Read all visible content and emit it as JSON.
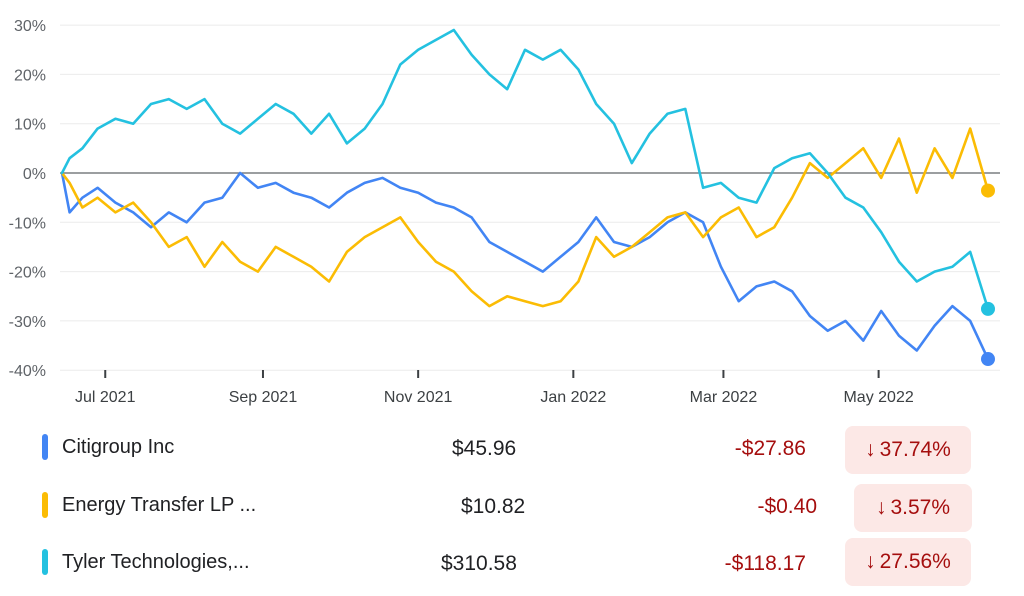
{
  "chart_data": {
    "type": "line",
    "yticks": [
      "30%",
      "20%",
      "10%",
      "0%",
      "-10%",
      "-20%",
      "-30%",
      "-40%"
    ],
    "ylim": [
      -40,
      30
    ],
    "xlim": [
      "2021-06-14",
      "2022-06-13"
    ],
    "xticks": [
      {
        "label": "Jul 2021",
        "date": "2021-07-01"
      },
      {
        "label": "Sep 2021",
        "date": "2021-09-01"
      },
      {
        "label": "Nov 2021",
        "date": "2021-11-01"
      },
      {
        "label": "Jan 2022",
        "date": "2022-01-01"
      },
      {
        "label": "Mar 2022",
        "date": "2022-03-01"
      },
      {
        "label": "May 2022",
        "date": "2022-05-01"
      }
    ],
    "series": [
      {
        "name": "Citigroup Inc",
        "color": "#4285f4",
        "points": [
          [
            "2021-06-14",
            0
          ],
          [
            "2021-06-17",
            -8
          ],
          [
            "2021-06-22",
            -5
          ],
          [
            "2021-06-28",
            -3
          ],
          [
            "2021-07-05",
            -6
          ],
          [
            "2021-07-12",
            -8
          ],
          [
            "2021-07-19",
            -11
          ],
          [
            "2021-07-26",
            -8
          ],
          [
            "2021-08-02",
            -10
          ],
          [
            "2021-08-09",
            -6
          ],
          [
            "2021-08-16",
            -5
          ],
          [
            "2021-08-23",
            0
          ],
          [
            "2021-08-30",
            -3
          ],
          [
            "2021-09-06",
            -2
          ],
          [
            "2021-09-13",
            -4
          ],
          [
            "2021-09-20",
            -5
          ],
          [
            "2021-09-27",
            -7
          ],
          [
            "2021-10-04",
            -4
          ],
          [
            "2021-10-11",
            -2
          ],
          [
            "2021-10-18",
            -1
          ],
          [
            "2021-10-25",
            -3
          ],
          [
            "2021-11-01",
            -4
          ],
          [
            "2021-11-08",
            -6
          ],
          [
            "2021-11-15",
            -7
          ],
          [
            "2021-11-22",
            -9
          ],
          [
            "2021-11-29",
            -14
          ],
          [
            "2021-12-06",
            -16
          ],
          [
            "2021-12-13",
            -18
          ],
          [
            "2021-12-20",
            -20
          ],
          [
            "2021-12-27",
            -17
          ],
          [
            "2022-01-03",
            -14
          ],
          [
            "2022-01-10",
            -9
          ],
          [
            "2022-01-17",
            -14
          ],
          [
            "2022-01-24",
            -15
          ],
          [
            "2022-01-31",
            -13
          ],
          [
            "2022-02-07",
            -10
          ],
          [
            "2022-02-14",
            -8
          ],
          [
            "2022-02-21",
            -10
          ],
          [
            "2022-02-28",
            -19
          ],
          [
            "2022-03-07",
            -26
          ],
          [
            "2022-03-14",
            -23
          ],
          [
            "2022-03-21",
            -22
          ],
          [
            "2022-03-28",
            -24
          ],
          [
            "2022-04-04",
            -29
          ],
          [
            "2022-04-11",
            -32
          ],
          [
            "2022-04-18",
            -30
          ],
          [
            "2022-04-25",
            -34
          ],
          [
            "2022-05-02",
            -28
          ],
          [
            "2022-05-09",
            -33
          ],
          [
            "2022-05-16",
            -36
          ],
          [
            "2022-05-23",
            -31
          ],
          [
            "2022-05-30",
            -27
          ],
          [
            "2022-06-06",
            -30
          ],
          [
            "2022-06-13",
            -37.74
          ]
        ]
      },
      {
        "name": "Energy Transfer LP ...",
        "color": "#fbbc04",
        "points": [
          [
            "2021-06-14",
            0
          ],
          [
            "2021-06-17",
            -2
          ],
          [
            "2021-06-22",
            -7
          ],
          [
            "2021-06-28",
            -5
          ],
          [
            "2021-07-05",
            -8
          ],
          [
            "2021-07-12",
            -6
          ],
          [
            "2021-07-19",
            -10
          ],
          [
            "2021-07-26",
            -15
          ],
          [
            "2021-08-02",
            -13
          ],
          [
            "2021-08-09",
            -19
          ],
          [
            "2021-08-16",
            -14
          ],
          [
            "2021-08-23",
            -18
          ],
          [
            "2021-08-30",
            -20
          ],
          [
            "2021-09-06",
            -15
          ],
          [
            "2021-09-13",
            -17
          ],
          [
            "2021-09-20",
            -19
          ],
          [
            "2021-09-27",
            -22
          ],
          [
            "2021-10-04",
            -16
          ],
          [
            "2021-10-11",
            -13
          ],
          [
            "2021-10-18",
            -11
          ],
          [
            "2021-10-25",
            -9
          ],
          [
            "2021-11-01",
            -14
          ],
          [
            "2021-11-08",
            -18
          ],
          [
            "2021-11-15",
            -20
          ],
          [
            "2021-11-22",
            -24
          ],
          [
            "2021-11-29",
            -27
          ],
          [
            "2021-12-06",
            -25
          ],
          [
            "2021-12-13",
            -26
          ],
          [
            "2021-12-20",
            -27
          ],
          [
            "2021-12-27",
            -26
          ],
          [
            "2022-01-03",
            -22
          ],
          [
            "2022-01-10",
            -13
          ],
          [
            "2022-01-17",
            -17
          ],
          [
            "2022-01-24",
            -15
          ],
          [
            "2022-01-31",
            -12
          ],
          [
            "2022-02-07",
            -9
          ],
          [
            "2022-02-14",
            -8
          ],
          [
            "2022-02-21",
            -13
          ],
          [
            "2022-02-28",
            -9
          ],
          [
            "2022-03-07",
            -7
          ],
          [
            "2022-03-14",
            -13
          ],
          [
            "2022-03-21",
            -11
          ],
          [
            "2022-03-28",
            -5
          ],
          [
            "2022-04-04",
            2
          ],
          [
            "2022-04-11",
            -1
          ],
          [
            "2022-04-18",
            2
          ],
          [
            "2022-04-25",
            5
          ],
          [
            "2022-05-02",
            -1
          ],
          [
            "2022-05-09",
            7
          ],
          [
            "2022-05-16",
            -4
          ],
          [
            "2022-05-23",
            5
          ],
          [
            "2022-05-30",
            -1
          ],
          [
            "2022-06-06",
            9
          ],
          [
            "2022-06-13",
            -3.57
          ]
        ]
      },
      {
        "name": "Tyler Technologies,...",
        "color": "#24c1e0",
        "points": [
          [
            "2021-06-14",
            0
          ],
          [
            "2021-06-17",
            3
          ],
          [
            "2021-06-22",
            5
          ],
          [
            "2021-06-28",
            9
          ],
          [
            "2021-07-05",
            11
          ],
          [
            "2021-07-12",
            10
          ],
          [
            "2021-07-19",
            14
          ],
          [
            "2021-07-26",
            15
          ],
          [
            "2021-08-02",
            13
          ],
          [
            "2021-08-09",
            15
          ],
          [
            "2021-08-16",
            10
          ],
          [
            "2021-08-23",
            8
          ],
          [
            "2021-08-30",
            11
          ],
          [
            "2021-09-06",
            14
          ],
          [
            "2021-09-13",
            12
          ],
          [
            "2021-09-20",
            8
          ],
          [
            "2021-09-27",
            12
          ],
          [
            "2021-10-04",
            6
          ],
          [
            "2021-10-11",
            9
          ],
          [
            "2021-10-18",
            14
          ],
          [
            "2021-10-25",
            22
          ],
          [
            "2021-11-01",
            25
          ],
          [
            "2021-11-08",
            27
          ],
          [
            "2021-11-15",
            29
          ],
          [
            "2021-11-22",
            24
          ],
          [
            "2021-11-29",
            20
          ],
          [
            "2021-12-06",
            17
          ],
          [
            "2021-12-13",
            25
          ],
          [
            "2021-12-20",
            23
          ],
          [
            "2021-12-27",
            25
          ],
          [
            "2022-01-03",
            21
          ],
          [
            "2022-01-10",
            14
          ],
          [
            "2022-01-17",
            10
          ],
          [
            "2022-01-24",
            2
          ],
          [
            "2022-01-31",
            8
          ],
          [
            "2022-02-07",
            12
          ],
          [
            "2022-02-14",
            13
          ],
          [
            "2022-02-21",
            -3
          ],
          [
            "2022-02-28",
            -2
          ],
          [
            "2022-03-07",
            -5
          ],
          [
            "2022-03-14",
            -6
          ],
          [
            "2022-03-21",
            1
          ],
          [
            "2022-03-28",
            3
          ],
          [
            "2022-04-04",
            4
          ],
          [
            "2022-04-11",
            0
          ],
          [
            "2022-04-18",
            -5
          ],
          [
            "2022-04-25",
            -7
          ],
          [
            "2022-05-02",
            -12
          ],
          [
            "2022-05-09",
            -18
          ],
          [
            "2022-05-16",
            -22
          ],
          [
            "2022-05-23",
            -20
          ],
          [
            "2022-05-30",
            -19
          ],
          [
            "2022-06-06",
            -16
          ],
          [
            "2022-06-13",
            -27.56
          ]
        ]
      }
    ]
  },
  "legend": [
    {
      "name": "Citigroup Inc",
      "color": "#4285f4",
      "price": "$45.96",
      "change": "-$27.86",
      "pct": "37.74%"
    },
    {
      "name": "Energy Transfer LP ...",
      "color": "#fbbc04",
      "price": "$10.82",
      "change": "-$0.40",
      "pct": "3.57%"
    },
    {
      "name": "Tyler Technologies,...",
      "color": "#24c1e0",
      "price": "$310.58",
      "change": "-$118.17",
      "pct": "27.56%"
    }
  ]
}
